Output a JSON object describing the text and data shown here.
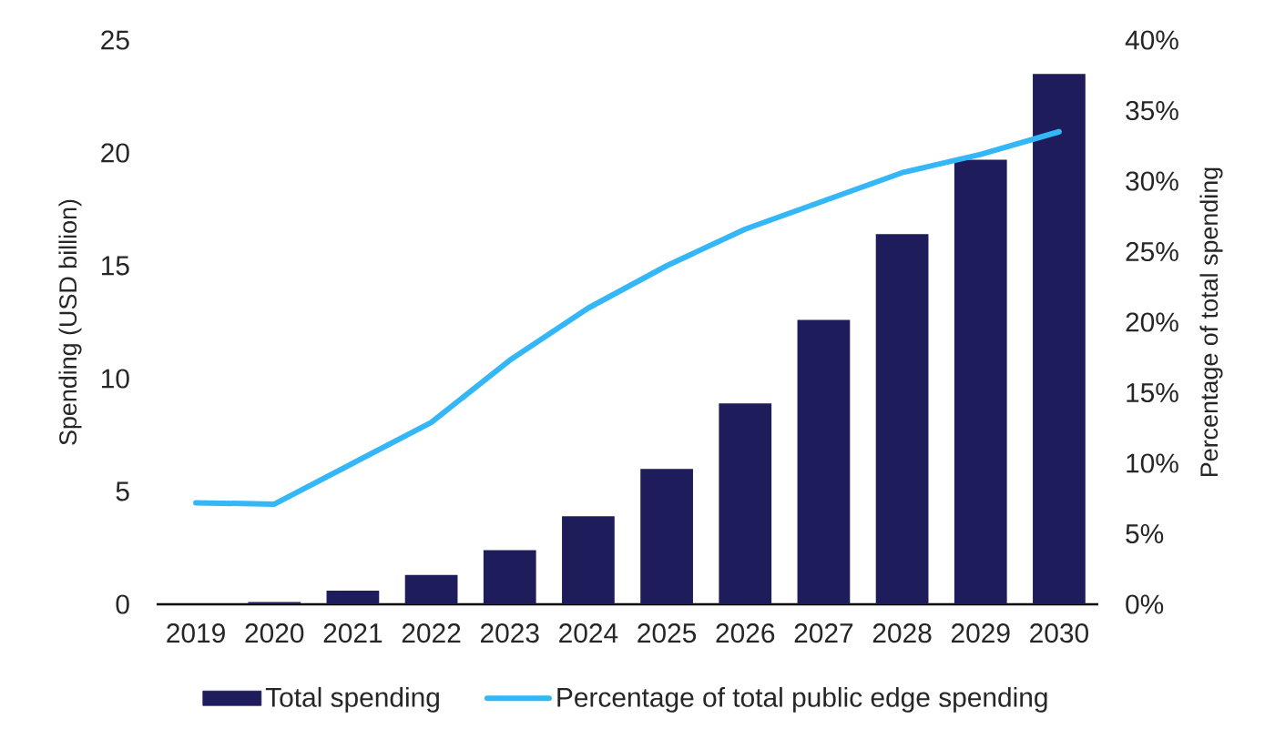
{
  "chart_data": {
    "type": "bar",
    "categories": [
      "2019",
      "2020",
      "2021",
      "2022",
      "2023",
      "2024",
      "2025",
      "2026",
      "2027",
      "2028",
      "2029",
      "2030"
    ],
    "ylabel": "Spending (USD billion)",
    "y2label": "Percentage of total spending",
    "ylim": [
      0,
      25
    ],
    "yticks": [
      0,
      5,
      10,
      15,
      20,
      25
    ],
    "y2lim": [
      0,
      40
    ],
    "y2ticks": [
      {
        "value": 0,
        "label": "0%"
      },
      {
        "value": 5,
        "label": "5%"
      },
      {
        "value": 10,
        "label": "10%"
      },
      {
        "value": 15,
        "label": "15%"
      },
      {
        "value": 20,
        "label": "20%"
      },
      {
        "value": 25,
        "label": "25%"
      },
      {
        "value": 30,
        "label": "30%"
      },
      {
        "value": 35,
        "label": "35%"
      },
      {
        "value": 40,
        "label": "40%"
      }
    ],
    "series": [
      {
        "name": "Total spending",
        "color": "#1f1c5b",
        "values": [
          0,
          0.1,
          0.6,
          1.3,
          2.4,
          3.9,
          6.0,
          8.9,
          12.6,
          16.4,
          19.7,
          23.5
        ]
      },
      {
        "name": "Percentage of total public edge spending",
        "type": "line",
        "axis": "y2",
        "color": "#33b7f7",
        "values": [
          7.2,
          7.1,
          10.0,
          12.9,
          17.3,
          21.0,
          24.0,
          26.6,
          28.6,
          30.6,
          31.9,
          33.5
        ]
      }
    ],
    "legend": "bottom",
    "grid": false,
    "marker": "none"
  }
}
